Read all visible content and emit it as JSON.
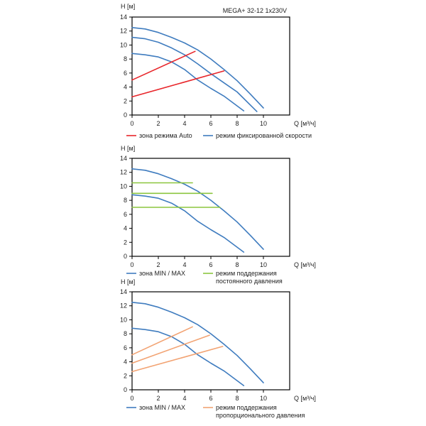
{
  "chart_data": [
    {
      "type": "line",
      "title": "MEGA+ 32-12 1x230V",
      "ylabel": "H [м]",
      "xlabel": "Q [м³/ч]",
      "xlim": [
        0,
        12
      ],
      "ylim": [
        0,
        14
      ],
      "xticks": [
        "0",
        "2",
        "4",
        "6",
        "8",
        "10"
      ],
      "yticks": [
        "0",
        "2",
        "4",
        "6",
        "8",
        "10",
        "12",
        "14"
      ],
      "grid": false,
      "legend": [
        {
          "label": "зона режима Auto",
          "color": "#e8262b"
        },
        {
          "label": "режим фиксированной скорости",
          "color": "#3f7cbf"
        }
      ],
      "series": [
        {
          "group": "fixed",
          "color": "#3f7cbf",
          "x": [
            0,
            1,
            2,
            3,
            4,
            5,
            6,
            7,
            8,
            9,
            10
          ],
          "y": [
            12.5,
            12.3,
            11.8,
            11.1,
            10.3,
            9.3,
            8.0,
            6.5,
            4.9,
            3.0,
            1.0
          ]
        },
        {
          "group": "fixed",
          "color": "#3f7cbf",
          "x": [
            0,
            1,
            2,
            3,
            4,
            5,
            6,
            7,
            8,
            9.5
          ],
          "y": [
            11.1,
            10.9,
            10.4,
            9.6,
            8.6,
            7.3,
            5.9,
            4.6,
            3.3,
            0.5
          ]
        },
        {
          "group": "fixed",
          "color": "#3f7cbf",
          "x": [
            0,
            1,
            2,
            3,
            4,
            5,
            6,
            7,
            8.5
          ],
          "y": [
            8.8,
            8.6,
            8.3,
            7.6,
            6.5,
            5.0,
            3.8,
            2.7,
            0.6
          ]
        },
        {
          "group": "auto",
          "color": "#e8262b",
          "x": [
            0,
            4.8
          ],
          "y": [
            5.0,
            9.1
          ]
        },
        {
          "group": "auto",
          "color": "#e8262b",
          "x": [
            0,
            7.0
          ],
          "y": [
            2.6,
            6.3
          ]
        }
      ]
    },
    {
      "type": "line",
      "title": "",
      "ylabel": "H [м]",
      "xlabel": "Q [м³/ч]",
      "xlim": [
        0,
        12
      ],
      "ylim": [
        0,
        14
      ],
      "xticks": [
        "0",
        "2",
        "4",
        "6",
        "8",
        "10"
      ],
      "yticks": [
        "0",
        "2",
        "4",
        "6",
        "8",
        "10",
        "12",
        "14"
      ],
      "grid": false,
      "legend": [
        {
          "label": "зона MIN / MAX",
          "color": "#3f7cbf"
        },
        {
          "label": "режим поддержания постоянного давления",
          "color": "#8cc63f",
          "lines": [
            "режим поддержания",
            "постоянного давления"
          ]
        }
      ],
      "series": [
        {
          "group": "minmax",
          "color": "#3f7cbf",
          "x": [
            0,
            1,
            2,
            3,
            4,
            5,
            6,
            7,
            8,
            9,
            10
          ],
          "y": [
            12.5,
            12.3,
            11.8,
            11.1,
            10.3,
            9.3,
            8.0,
            6.5,
            4.9,
            3.0,
            1.0
          ]
        },
        {
          "group": "minmax",
          "color": "#3f7cbf",
          "x": [
            0,
            1,
            2,
            3,
            4,
            5,
            6,
            7,
            8.5
          ],
          "y": [
            8.8,
            8.6,
            8.3,
            7.6,
            6.5,
            5.0,
            3.8,
            2.7,
            0.6
          ]
        },
        {
          "group": "constant",
          "color": "#8cc63f",
          "x": [
            0,
            4.6
          ],
          "y": [
            10.5,
            10.5
          ]
        },
        {
          "group": "constant",
          "color": "#8cc63f",
          "x": [
            0,
            6.1
          ],
          "y": [
            9.0,
            9.0
          ]
        },
        {
          "group": "constant",
          "color": "#8cc63f",
          "x": [
            0,
            6.7
          ],
          "y": [
            7.0,
            7.0
          ]
        }
      ]
    },
    {
      "type": "line",
      "title": "",
      "ylabel": "H [м]",
      "xlabel": "Q [м³/ч]",
      "xlim": [
        0,
        12
      ],
      "ylim": [
        0,
        14
      ],
      "xticks": [
        "0",
        "2",
        "4",
        "6",
        "8",
        "10"
      ],
      "yticks": [
        "0",
        "2",
        "4",
        "6",
        "8",
        "10",
        "12",
        "14"
      ],
      "grid": false,
      "legend": [
        {
          "label": "зона MIN / MAX",
          "color": "#3f7cbf"
        },
        {
          "label": "режим поддержания пропорционального давления",
          "color": "#f2a373",
          "lines": [
            "режим поддержания",
            "пропорционального давления"
          ]
        }
      ],
      "series": [
        {
          "group": "minmax",
          "color": "#3f7cbf",
          "x": [
            0,
            1,
            2,
            3,
            4,
            5,
            6,
            7,
            8,
            9,
            10
          ],
          "y": [
            12.5,
            12.3,
            11.8,
            11.1,
            10.3,
            9.3,
            8.0,
            6.5,
            4.9,
            3.0,
            1.0
          ]
        },
        {
          "group": "minmax",
          "color": "#3f7cbf",
          "x": [
            0,
            1,
            2,
            3,
            4,
            5,
            6,
            7,
            8.5
          ],
          "y": [
            8.8,
            8.6,
            8.3,
            7.6,
            6.5,
            5.0,
            3.8,
            2.7,
            0.6
          ]
        },
        {
          "group": "proportional",
          "color": "#f2a373",
          "x": [
            0,
            4.6
          ],
          "y": [
            5.0,
            9.0
          ]
        },
        {
          "group": "proportional",
          "color": "#f2a373",
          "x": [
            0,
            5.9
          ],
          "y": [
            3.8,
            7.8
          ]
        },
        {
          "group": "proportional",
          "color": "#f2a373",
          "x": [
            0,
            6.9
          ],
          "y": [
            2.6,
            6.2
          ]
        }
      ]
    }
  ]
}
